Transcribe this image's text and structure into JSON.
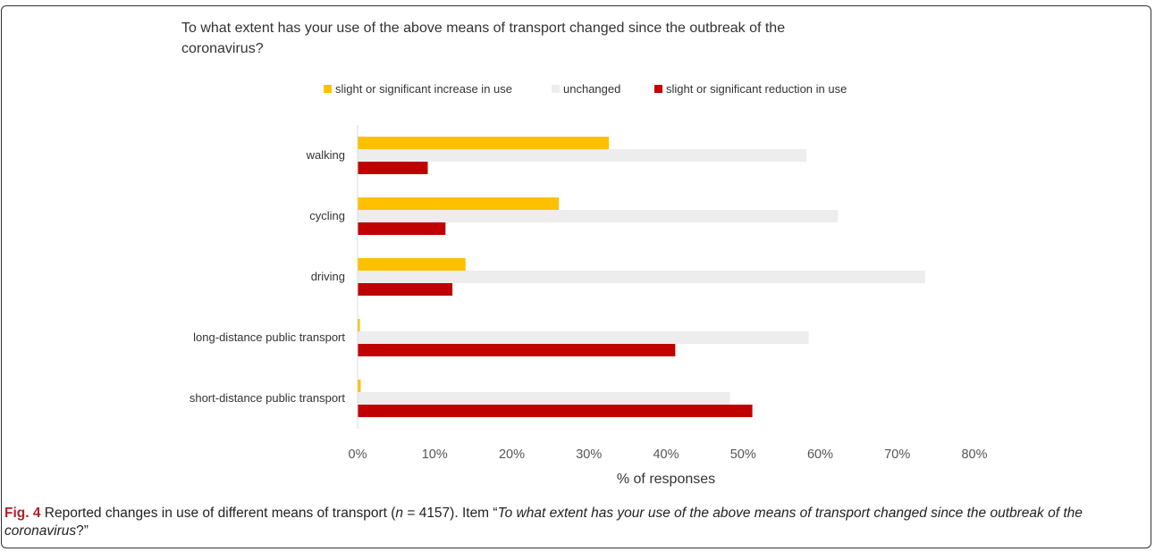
{
  "chart_data": {
    "type": "bar",
    "orientation": "horizontal",
    "title": "To what extent has your use of the above means of transport changed since the outbreak of the coronavirus?",
    "categories": [
      "walking",
      "cycling",
      "driving",
      "long-distance public transport",
      "short-distance public transport"
    ],
    "series": [
      {
        "name": "slight or significant increase in use",
        "color": "#ffc000",
        "values": [
          32.6,
          26.1,
          14.0,
          0.3,
          0.4
        ]
      },
      {
        "name": "unchanged",
        "color": "#ededed",
        "values": [
          58.2,
          62.3,
          73.6,
          58.5,
          48.3
        ]
      },
      {
        "name": "slight or significant reduction in use",
        "color": "#c00000",
        "values": [
          9.1,
          11.4,
          12.3,
          41.2,
          51.2
        ]
      }
    ],
    "xlabel": "% of responses",
    "xlim": [
      0,
      80
    ],
    "xticks": [
      "0%",
      "10%",
      "20%",
      "30%",
      "40%",
      "50%",
      "60%",
      "70%",
      "80%"
    ],
    "legend_position": "top",
    "grid": false
  },
  "caption": {
    "label": "Fig. 4",
    "text_a": " Reported changes in use of different means of transport (",
    "n_symbol": "n",
    "text_b": " = 4157). Item “",
    "question": "To what extent has your use of the above means of transport changed since the outbreak of the coronavirus",
    "text_c": "?”"
  }
}
